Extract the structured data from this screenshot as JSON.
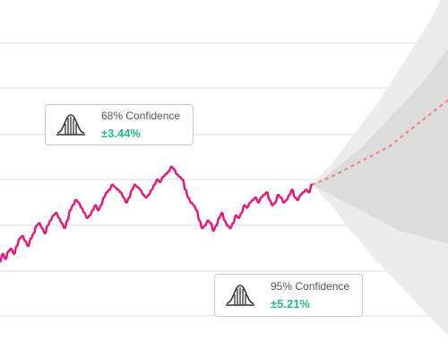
{
  "chart_data": {
    "type": "line",
    "grid": true,
    "series": [
      {
        "values": [
          58,
          61,
          59,
          62,
          63,
          61,
          64,
          67,
          68,
          66,
          64,
          67,
          69,
          72,
          73,
          71,
          69,
          72,
          74,
          76,
          77,
          75,
          73,
          71,
          74,
          78,
          80,
          82,
          81,
          79,
          77,
          75,
          76,
          78,
          80,
          78,
          80,
          83,
          85,
          86,
          88,
          87,
          86,
          85,
          83,
          81,
          83,
          86,
          88,
          87,
          86,
          84,
          83,
          84,
          86,
          88,
          90,
          89,
          91,
          92,
          93,
          95,
          94,
          92,
          91,
          90,
          86,
          83,
          81,
          80,
          78,
          74,
          71,
          72,
          74,
          73,
          70,
          72,
          75,
          77,
          74,
          72,
          71,
          73,
          76,
          75,
          77,
          80,
          79,
          81,
          82,
          83,
          81,
          83,
          84,
          85,
          82,
          80,
          81,
          84,
          83,
          81,
          82,
          84,
          86,
          83,
          82,
          84,
          85,
          86,
          85,
          88
        ],
        "color": "#e8187a"
      }
    ],
    "forecast": {
      "style": "dashed",
      "color": "#f08080",
      "values": [
        88,
        89.5,
        91,
        93,
        95,
        97,
        99,
        101,
        103,
        106,
        109,
        112,
        115,
        118,
        121
      ],
      "bands": [
        {
          "upper": [
            88,
            92,
            96,
            101,
            106,
            111,
            116,
            121,
            127,
            133,
            139,
            145,
            151,
            158,
            165
          ],
          "lower": [
            88,
            84,
            80,
            75,
            70,
            66,
            61,
            57,
            53,
            49,
            45,
            41,
            37,
            33,
            29
          ]
        },
        {
          "upper": [
            88,
            90,
            93,
            96,
            99,
            102,
            106,
            110,
            114,
            118,
            122,
            126,
            131,
            136,
            141
          ],
          "lower": [
            88,
            86,
            84,
            82,
            80,
            78,
            76,
            74,
            72,
            70,
            69,
            68,
            67,
            66,
            65
          ]
        }
      ]
    },
    "annotations": [
      {
        "label": "68% Confidence",
        "value": "±3.44%",
        "icon": "bell-curve-icon"
      },
      {
        "label": "95% Confidence",
        "value": "±5.21%",
        "icon": "bell-curve-icon"
      }
    ]
  },
  "colors": {
    "accent_value": "#1fbf83",
    "band_outer": "#ececec",
    "band_inner": "#dcdcdc",
    "grid": "#d9d9d9"
  }
}
